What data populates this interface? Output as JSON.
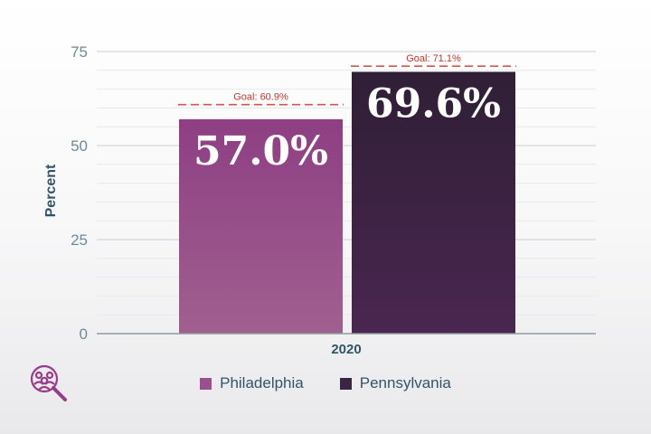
{
  "chart_data": {
    "type": "bar",
    "categories": [
      "2020"
    ],
    "series": [
      {
        "name": "Philadelphia",
        "values": [
          57.0
        ],
        "value_labels": [
          "57.0%"
        ],
        "goal": 60.9,
        "goal_label": "Goal: 60.9%",
        "color": "#9b4f8f",
        "color_top": "#8e3f83",
        "color_bottom": "#a0608f"
      },
      {
        "name": "Pennsylvania",
        "values": [
          69.6
        ],
        "value_labels": [
          "69.6%"
        ],
        "goal": 71.1,
        "goal_label": "Goal: 71.1%",
        "color": "#3b2444",
        "color_top": "#2f1f35",
        "color_bottom": "#4a2650"
      }
    ],
    "title": "",
    "xlabel": "",
    "ylabel": "Percent",
    "ylim": [
      0,
      75
    ],
    "yticks": [
      0,
      25,
      50,
      75
    ],
    "ytick_labels": [
      "0",
      "25",
      "50",
      "75"
    ],
    "minor_grid_step": 5,
    "grid": true,
    "legend_position": "bottom-center",
    "goal_color": "#d9534f"
  },
  "logo": {
    "icon": "people-magnifier-icon",
    "color": "#9b3a8a"
  }
}
